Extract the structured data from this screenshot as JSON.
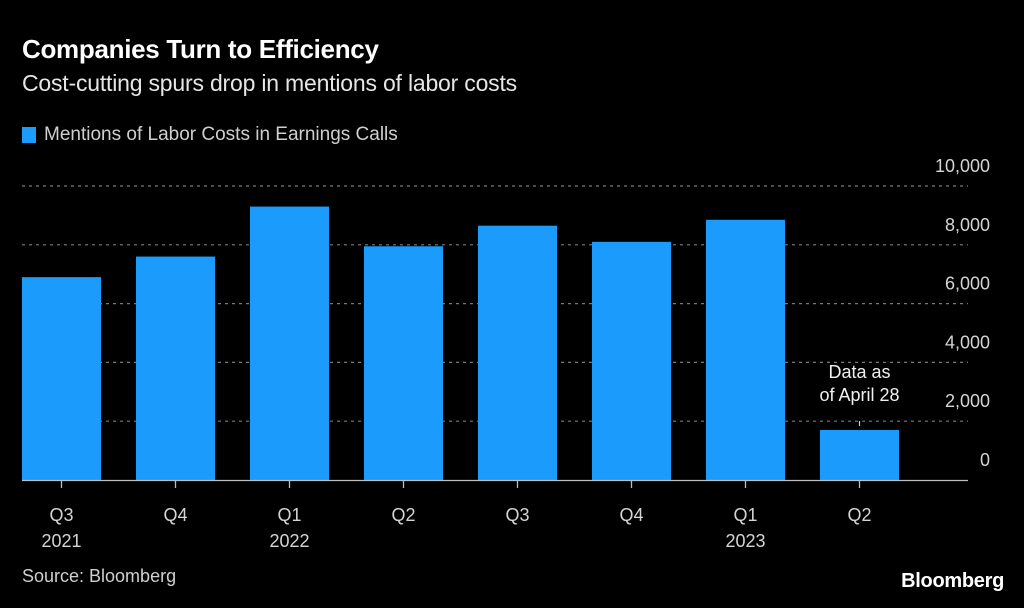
{
  "header": {
    "title": "Companies Turn to Efficiency",
    "subtitle": "Cost-cutting spurs drop in mentions of labor costs"
  },
  "colors": {
    "bar": "#1b9cfc",
    "background": "#000000",
    "grid": "#7a7a7a",
    "axis": "#bdbdbd"
  },
  "footer": {
    "source": "Source: Bloomberg",
    "brand": "Bloomberg"
  },
  "chart_data": {
    "type": "bar",
    "title": "Companies Turn to Efficiency",
    "subtitle": "Cost-cutting spurs drop in mentions of labor costs",
    "xlabel": "",
    "ylabel": "",
    "categories": [
      "Q3 2021",
      "Q4 2021",
      "Q1 2022",
      "Q2 2022",
      "Q3 2022",
      "Q4 2022",
      "Q1 2023",
      "Q2 2023"
    ],
    "x_tick_labels": [
      {
        "line1": "Q3",
        "line2": "2021"
      },
      {
        "line1": "Q4",
        "line2": ""
      },
      {
        "line1": "Q1",
        "line2": "2022"
      },
      {
        "line1": "Q2",
        "line2": ""
      },
      {
        "line1": "Q3",
        "line2": ""
      },
      {
        "line1": "Q4",
        "line2": ""
      },
      {
        "line1": "Q1",
        "line2": "2023"
      },
      {
        "line1": "Q2",
        "line2": ""
      }
    ],
    "series": [
      {
        "name": "Mentions of Labor Costs in Earnings Calls",
        "color": "#1b9cfc",
        "values": [
          6900,
          7600,
          9300,
          7950,
          8650,
          8100,
          8850,
          1700
        ]
      }
    ],
    "ylim": [
      0,
      10000
    ],
    "yticks": [
      0,
      2000,
      4000,
      6000,
      8000,
      10000
    ],
    "ytick_labels": [
      "0",
      "2,000",
      "4,000",
      "6,000",
      "8,000",
      "10,000"
    ],
    "y_axis_side": "right",
    "grid": true,
    "grid_style": "dotted",
    "legend": {
      "placement": "top-left",
      "entries": [
        "Mentions of Labor Costs in Earnings Calls"
      ]
    },
    "annotations": [
      {
        "category": "Q2 2023",
        "lines": [
          "Data as",
          "of April 28"
        ]
      }
    ]
  }
}
